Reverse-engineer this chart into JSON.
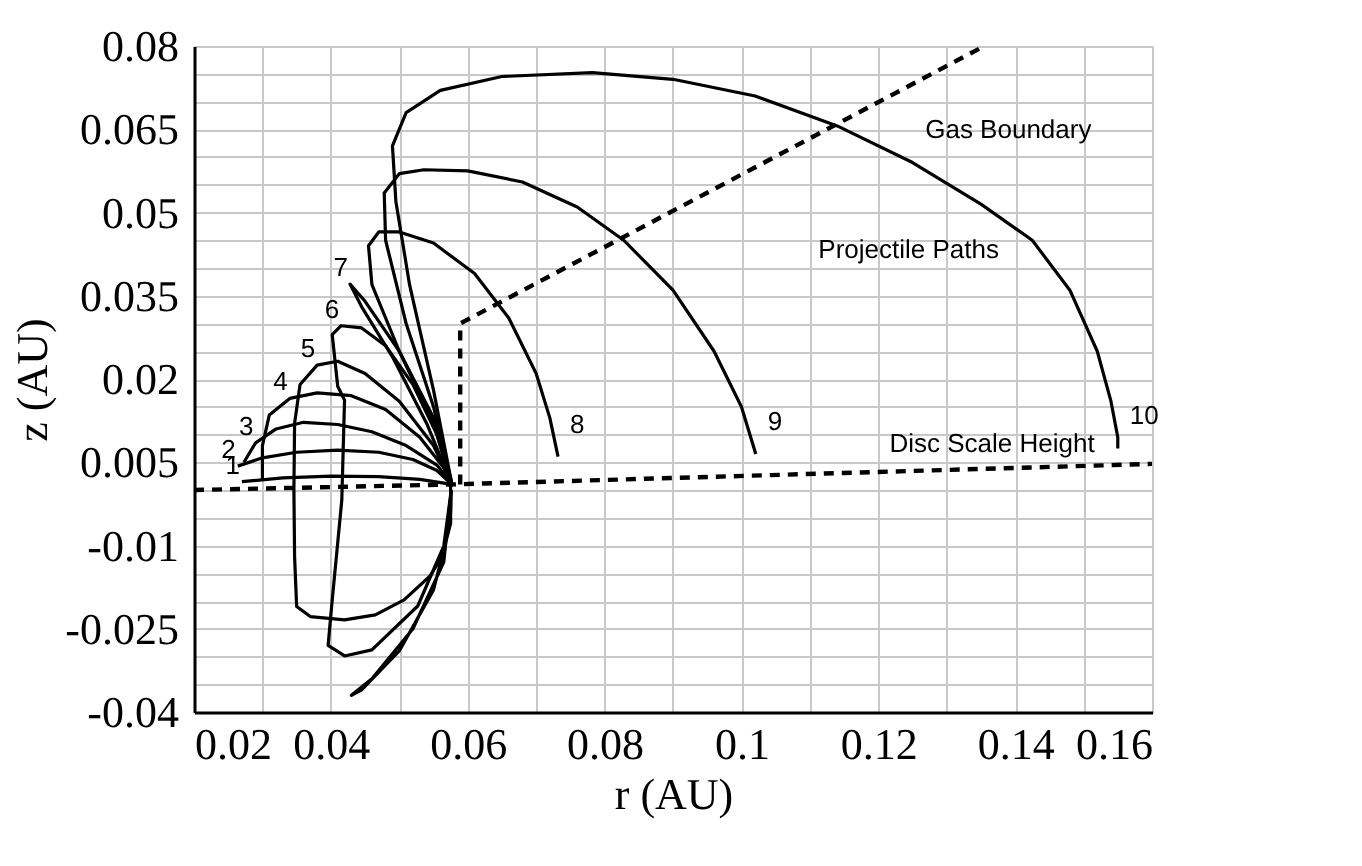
{
  "chart_data": {
    "type": "line",
    "xlabel": "r (AU)",
    "ylabel": "z (AU)",
    "xlim": [
      0.02,
      0.16
    ],
    "xticks": [
      0.02,
      {
        "value": 0.03,
        "label": null
      },
      0.04,
      {
        "value": 0.05,
        "label": null
      },
      0.06,
      {
        "value": 0.07,
        "label": null
      },
      0.08,
      {
        "value": 0.09,
        "label": null
      },
      0.1,
      {
        "value": 0.11,
        "label": null
      },
      0.12,
      {
        "value": 0.13,
        "label": null
      },
      0.14,
      {
        "value": 0.15,
        "label": null
      },
      0.16
    ],
    "ylim": [
      -0.04,
      0.08
    ],
    "yticks": [
      -0.04,
      {
        "value": -0.035,
        "label": null
      },
      {
        "value": -0.03,
        "label": null
      },
      -0.025,
      {
        "value": -0.02,
        "label": null
      },
      {
        "value": -0.015,
        "label": null
      },
      -0.01,
      {
        "value": -0.005,
        "label": null
      },
      {
        "value": 0,
        "label": null
      },
      0.005,
      {
        "value": 0.01,
        "label": null
      },
      {
        "value": 0.015,
        "label": null
      },
      0.02,
      {
        "value": 0.025,
        "label": null
      },
      {
        "value": 0.03,
        "label": null
      },
      0.035,
      {
        "value": 0.04,
        "label": null
      },
      {
        "value": 0.045,
        "label": null
      },
      0.05,
      {
        "value": 0.055,
        "label": null
      },
      {
        "value": 0.06,
        "label": null
      },
      0.065,
      {
        "value": 0.07,
        "label": null
      },
      {
        "value": 0.075,
        "label": null
      },
      0.08
    ],
    "grid": true,
    "marker": "none",
    "series": [
      {
        "color": "#000000",
        "line_style": "dashed",
        "x": [
          0.02,
          0.0577,
          0.16
        ],
        "values": [
          0.0,
          0.001,
          0.0047
        ]
      },
      {
        "color": "#000000",
        "line_style": "dashed",
        "x": [
          0.0589,
          0.0589,
          0.1355
        ],
        "values": [
          0.001,
          0.03,
          0.08
        ]
      },
      {
        "name": "1",
        "color": "#000000",
        "line_style": "solid",
        "x": [
          0.0577,
          0.053,
          0.047,
          0.04,
          0.033,
          0.027
        ],
        "values": [
          0.001,
          0.0019,
          0.0024,
          0.0025,
          0.0022,
          0.0015
        ]
      },
      {
        "name": "2",
        "color": "#000000",
        "line_style": "solid",
        "x": [
          0.0577,
          0.0555,
          0.052,
          0.047,
          0.041,
          0.035,
          0.03,
          0.0264
        ],
        "values": [
          0.001,
          0.0035,
          0.0055,
          0.0068,
          0.0072,
          0.0068,
          0.0058,
          0.0043
        ]
      },
      {
        "name": "3",
        "color": "#000000",
        "line_style": "solid",
        "x": [
          0.0577,
          0.0555,
          0.051,
          0.046,
          0.041,
          0.036,
          0.032,
          0.029,
          0.0273
        ],
        "values": [
          0.001,
          0.0045,
          0.008,
          0.0105,
          0.0118,
          0.0122,
          0.011,
          0.0085,
          0.005
        ]
      },
      {
        "name": "4",
        "color": "#000000",
        "line_style": "solid",
        "x": [
          0.0577,
          0.0565,
          0.053,
          0.048,
          0.043,
          0.038,
          0.034,
          0.031,
          0.03,
          0.03
        ],
        "values": [
          0.001,
          0.004,
          0.0095,
          0.0145,
          0.017,
          0.0175,
          0.0165,
          0.0135,
          0.008,
          0.002
        ]
      },
      {
        "name": "5",
        "color": "#000000",
        "line_style": "solid",
        "x": [
          0.0577,
          0.055,
          0.05,
          0.045,
          0.041,
          0.038,
          0.0355,
          0.0347,
          0.0346,
          0.0347,
          0.035,
          0.037,
          0.042,
          0.0465,
          0.0507,
          0.0545,
          0.0565,
          0.0575,
          0.0576
        ],
        "values": [
          0.001,
          0.008,
          0.016,
          0.021,
          0.0232,
          0.0225,
          0.019,
          0.012,
          0.0,
          -0.012,
          -0.021,
          -0.0228,
          -0.0234,
          -0.0225,
          -0.0198,
          -0.0155,
          -0.0115,
          -0.004,
          0.0
        ]
      },
      {
        "name": "6",
        "color": "#000000",
        "line_style": "solid",
        "x": [
          0.0577,
          0.0555,
          0.052,
          0.048,
          0.0445,
          0.0415,
          0.0402,
          0.041,
          0.042,
          0.0416,
          0.0402,
          0.0396,
          0.042,
          0.046,
          0.0527,
          0.0565,
          0.0576
        ],
        "values": [
          0.001,
          0.01,
          0.019,
          0.026,
          0.0292,
          0.0296,
          0.028,
          0.0187,
          0.0162,
          -0.0018,
          -0.0198,
          -0.028,
          -0.0299,
          -0.0288,
          -0.0209,
          -0.0101,
          0.0
        ]
      },
      {
        "name": "7",
        "color": "#000000",
        "line_style": "solid",
        "x": [
          0.0577,
          0.054,
          0.049,
          0.0445,
          0.0428,
          0.045,
          0.05,
          0.055,
          0.0575,
          0.0575,
          0.055,
          0.05,
          0.0445,
          0.043,
          0.046,
          0.052,
          0.0565,
          0.0576
        ],
        "values": [
          0.001,
          0.012,
          0.024,
          0.033,
          0.0371,
          0.034,
          0.025,
          0.013,
          0.002,
          -0.006,
          -0.018,
          -0.029,
          -0.036,
          -0.037,
          -0.034,
          -0.025,
          -0.013,
          0.0
        ]
      },
      {
        "name": "8",
        "color": "#000000",
        "line_style": "solid",
        "x": [
          0.0577,
          0.055,
          0.05,
          0.046,
          0.0455,
          0.047,
          0.05,
          0.055,
          0.061,
          0.066,
          0.07,
          0.072,
          0.0732
        ],
        "values": [
          0.001,
          0.012,
          0.025,
          0.037,
          0.044,
          0.0465,
          0.0465,
          0.0445,
          0.039,
          0.031,
          0.021,
          0.013,
          0.006
        ]
      },
      {
        "name": "9",
        "color": "#000000",
        "line_style": "solid",
        "x": [
          0.0577,
          0.055,
          0.051,
          0.048,
          0.0478,
          0.05,
          0.0536,
          0.06,
          0.068,
          0.076,
          0.0828,
          0.09,
          0.096,
          0.1,
          0.1021
        ],
        "values": [
          0.001,
          0.015,
          0.03,
          0.045,
          0.0535,
          0.057,
          0.0577,
          0.0575,
          0.0555,
          0.051,
          0.045,
          0.036,
          0.025,
          0.015,
          0.0065
        ]
      },
      {
        "name": "10",
        "color": "#000000",
        "line_style": "solid",
        "x": [
          0.0577,
          0.055,
          0.0515,
          0.0495,
          0.049,
          0.051,
          0.056,
          0.065,
          0.0782,
          0.09,
          0.102,
          0.114,
          0.125,
          0.135,
          0.1425,
          0.148,
          0.152,
          0.154,
          0.155,
          0.155
        ],
        "values": [
          0.001,
          0.018,
          0.037,
          0.052,
          0.062,
          0.068,
          0.072,
          0.0745,
          0.0752,
          0.074,
          0.071,
          0.0656,
          0.059,
          0.0515,
          0.045,
          0.036,
          0.025,
          0.016,
          0.0095,
          0.0075
        ]
      }
    ],
    "annotations": [
      "Gas Boundary",
      "Projectile Paths",
      "Disc Scale Height"
    ]
  }
}
